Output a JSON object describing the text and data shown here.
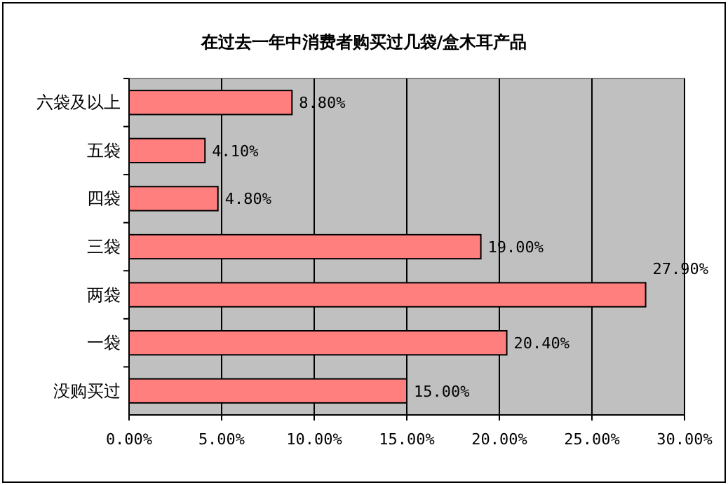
{
  "chart_data": {
    "type": "bar",
    "orientation": "horizontal",
    "title": "在过去一年中消费者购买过几袋/盒木耳产品",
    "categories": [
      "六袋及以上",
      "五袋",
      "四袋",
      "三袋",
      "两袋",
      "一袋",
      "没购买过"
    ],
    "values": [
      8.8,
      4.1,
      4.8,
      19.0,
      27.9,
      20.4,
      15.0
    ],
    "value_labels": [
      "8.80%",
      "4.10%",
      "4.80%",
      "19.00%",
      "27.90%",
      "20.40%",
      "15.00%"
    ],
    "color": "#ff7f7f",
    "xlim": [
      0,
      30
    ],
    "xticks": [
      {
        "value": 0,
        "label": "0.00%"
      },
      {
        "value": 5,
        "label": "5.00%"
      },
      {
        "value": 10,
        "label": "10.00%"
      },
      {
        "value": 15,
        "label": "15.00%"
      },
      {
        "value": 20,
        "label": "20.00%"
      },
      {
        "value": 25,
        "label": "25.00%"
      },
      {
        "value": 30,
        "label": "30.00%"
      }
    ],
    "grid": "x"
  }
}
